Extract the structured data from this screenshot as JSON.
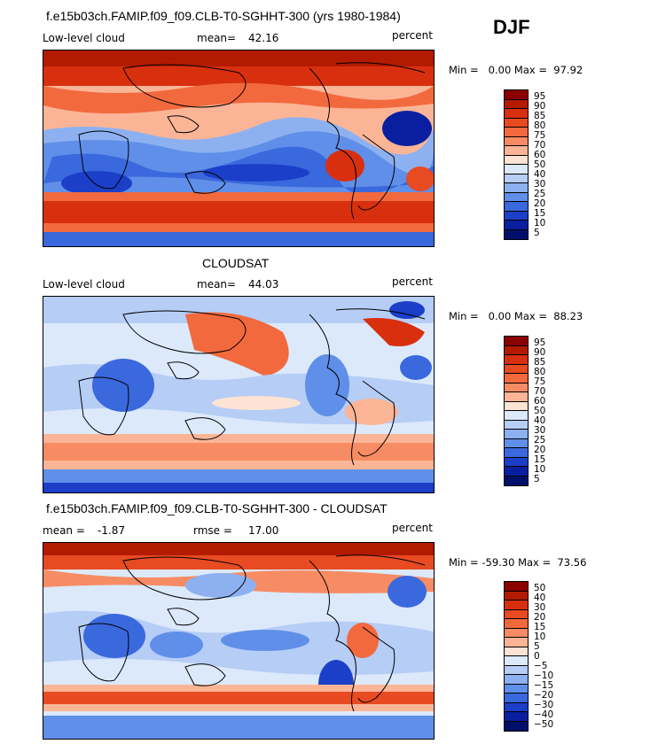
{
  "season": "DJF",
  "panels": [
    {
      "title": "f.e15b03ch.FAMIP.f09_f09.CLB-T0-SGHHT-300 (yrs 1980-1984)",
      "variable": "Low-level cloud",
      "stat_label": "mean=",
      "stat_value": "42.16",
      "units": "percent",
      "minmax": "Min =   0.00 Max =  97.92",
      "colorbar_labels": [
        "95",
        "90",
        "85",
        "80",
        "75",
        "70",
        "60",
        "50",
        "40",
        "30",
        "25",
        "20",
        "15",
        "10",
        "5"
      ],
      "colors": [
        "#8b0000",
        "#b31b00",
        "#d8300f",
        "#e84a22",
        "#f2693e",
        "#f78c64",
        "#fbb596",
        "#fde3d4",
        "#dce9fb",
        "#b6cdf6",
        "#8db1f0",
        "#5f8fe8",
        "#3a68dd",
        "#1b3fc8",
        "#0a1fa0",
        "#00106a"
      ]
    },
    {
      "title": "CLOUDSAT",
      "variable": "Low-level cloud",
      "stat_label": "mean=",
      "stat_value": "44.03",
      "units": "percent",
      "minmax": "Min =   0.00 Max =  88.23",
      "colorbar_labels": [
        "95",
        "90",
        "85",
        "80",
        "75",
        "70",
        "60",
        "50",
        "40",
        "30",
        "25",
        "20",
        "15",
        "10",
        "5"
      ],
      "colors": [
        "#8b0000",
        "#b31b00",
        "#d8300f",
        "#e84a22",
        "#f2693e",
        "#f78c64",
        "#fbb596",
        "#fde3d4",
        "#dce9fb",
        "#b6cdf6",
        "#8db1f0",
        "#5f8fe8",
        "#3a68dd",
        "#1b3fc8",
        "#0a1fa0",
        "#00106a"
      ]
    },
    {
      "title": "f.e15b03ch.FAMIP.f09_f09.CLB-T0-SGHHT-300 - CLOUDSAT",
      "stat1_label": "mean =",
      "stat1_value": "-1.87",
      "stat2_label": "rmse =",
      "stat2_value": "17.00",
      "units": "percent",
      "minmax": "Min = -59.30 Max =  73.56",
      "colorbar_labels": [
        "50",
        "40",
        "30",
        "20",
        "15",
        "10",
        "5",
        "0",
        "−5",
        "−10",
        "−15",
        "−20",
        "−30",
        "−40",
        "−50"
      ],
      "colors": [
        "#8b0000",
        "#b31b00",
        "#d8300f",
        "#e84a22",
        "#f2693e",
        "#f78c64",
        "#fbb596",
        "#fde3d4",
        "#dce9fb",
        "#b6cdf6",
        "#8db1f0",
        "#5f8fe8",
        "#3a68dd",
        "#1b3fc8",
        "#0a1fa0",
        "#00106a"
      ]
    }
  ]
}
